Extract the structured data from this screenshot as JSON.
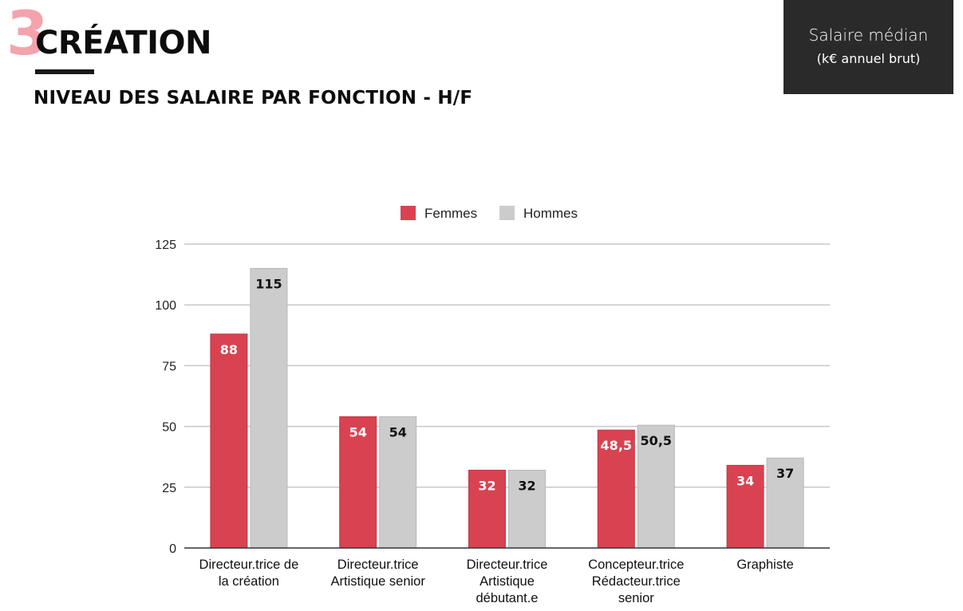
{
  "header": {
    "section_number": "3",
    "section_title": "CRÉATION",
    "subtitle": "NIVEAU DES SALAIRE PAR FONCTION - H/F"
  },
  "info_box": {
    "line1": "Salaire médian",
    "line2": "(k€ annuel brut)"
  },
  "colors": {
    "femmes": "#d94251",
    "hommes": "#cccccc",
    "section_number": "#f4a3ad",
    "info_box_bg": "#2a2a2a",
    "gridline": "#c8c8c8"
  },
  "chart_data": {
    "type": "bar",
    "categories": [
      [
        "Directeur.trice de",
        "la création"
      ],
      [
        "Directeur.trice",
        "Artistique senior"
      ],
      [
        "Directeur.trice",
        "Artistique",
        "débutant.e"
      ],
      [
        "Concepteur.trice",
        "Rédacteur.trice",
        "senior"
      ],
      [
        "Graphiste"
      ]
    ],
    "series": [
      {
        "name": "Femmes",
        "values": [
          88,
          54,
          32,
          48.5,
          34
        ],
        "labels": [
          "88",
          "54",
          "32",
          "48,5",
          "34"
        ]
      },
      {
        "name": "Hommes",
        "values": [
          115,
          54,
          32,
          50.5,
          37
        ],
        "labels": [
          "115",
          "54",
          "32",
          "50,5",
          "37"
        ]
      }
    ],
    "ylim": [
      0,
      125
    ],
    "yticks": [
      0,
      25,
      50,
      75,
      100,
      125
    ],
    "grid": true,
    "legend_position": "top-center"
  }
}
